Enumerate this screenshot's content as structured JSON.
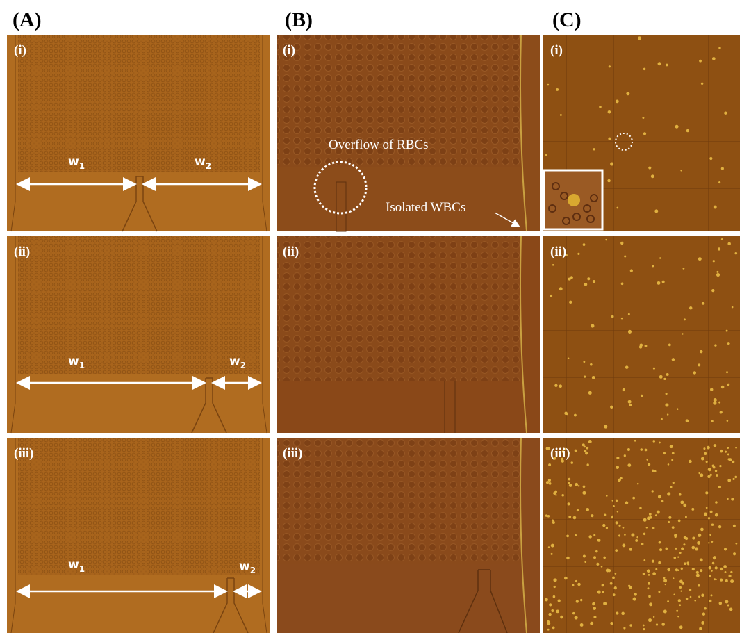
{
  "columns": [
    {
      "label": "(A)",
      "panels": [
        {
          "label": "(i)",
          "w1": {
            "text": "w",
            "sub": "1"
          },
          "w2": {
            "text": "w",
            "sub": "2"
          }
        },
        {
          "label": "(ii)",
          "w1": {
            "text": "w",
            "sub": "1"
          },
          "w2": {
            "text": "w",
            "sub": "2"
          }
        },
        {
          "label": "(iii)",
          "w1": {
            "text": "w",
            "sub": "1"
          },
          "w2": {
            "text": "w",
            "sub": "2"
          }
        }
      ]
    },
    {
      "label": "(B)",
      "panels": [
        {
          "label": "(i)",
          "annotations": [
            "Overflow of RBCs",
            "Isolated WBCs"
          ]
        },
        {
          "label": "(ii)"
        },
        {
          "label": "(iii)"
        }
      ]
    },
    {
      "label": "(C)",
      "panels": [
        {
          "label": "(i)"
        },
        {
          "label": "(ii)"
        },
        {
          "label": "(iii)"
        }
      ]
    }
  ]
}
